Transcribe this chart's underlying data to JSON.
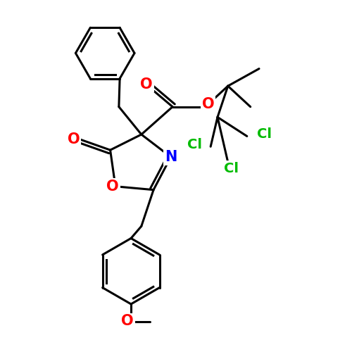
{
  "background_color": "#ffffff",
  "bond_color": "#000000",
  "bond_width": 2.2,
  "atom_colors": {
    "O": "#ff0000",
    "N": "#0000ff",
    "Cl": "#00bb00",
    "C": "#000000"
  },
  "font_size_atoms": 15,
  "font_size_cl": 14,
  "figsize": [
    5.0,
    5.0
  ],
  "dpi": 100
}
